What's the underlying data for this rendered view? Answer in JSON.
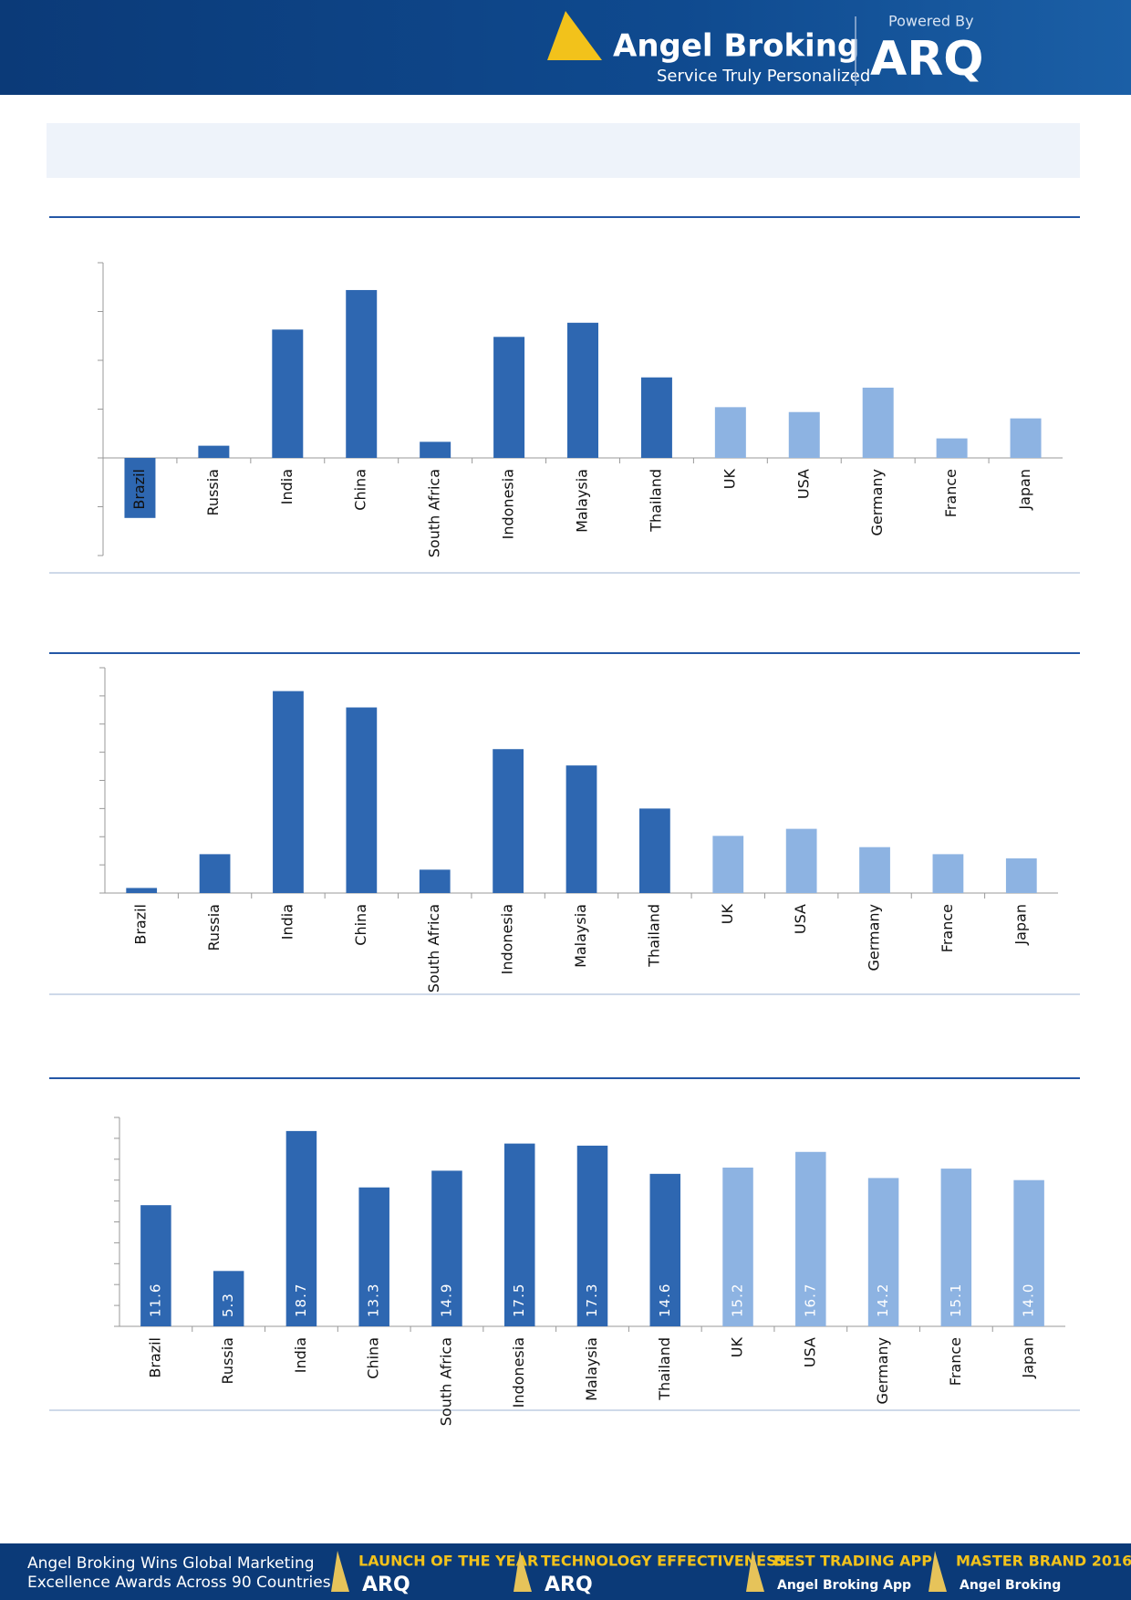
{
  "header": {
    "brand": "Angel Broking",
    "tagline": "Service Truly Personalized",
    "powered": "Powered By",
    "product": "ARQ"
  },
  "chart_data": [
    {
      "type": "bar",
      "categories": [
        "Brazil",
        "Russia",
        "India",
        "China",
        "South Africa",
        "Indonesia",
        "Malaysia",
        "Thailand",
        "UK",
        "USA",
        "Germany",
        "France",
        "Japan"
      ],
      "values": [
        -1.23,
        0.25,
        2.63,
        3.44,
        0.33,
        2.48,
        2.77,
        1.65,
        1.04,
        0.94,
        1.44,
        0.4,
        0.81
      ],
      "colors": [
        "#2e67b1",
        "#2e67b1",
        "#2e67b1",
        "#2e67b1",
        "#2e67b1",
        "#2e67b1",
        "#2e67b1",
        "#2e67b1",
        "#8db3e2",
        "#8db3e2",
        "#8db3e2",
        "#8db3e2",
        "#8db3e2"
      ],
      "ylim": [
        -2,
        4
      ],
      "yticks": [
        -2,
        -1,
        0,
        1,
        2,
        3,
        4
      ]
    },
    {
      "type": "bar",
      "categories": [
        "Brazil",
        "Russia",
        "India",
        "China",
        "South Africa",
        "Indonesia",
        "Malaysia",
        "Thailand",
        "UK",
        "USA",
        "Germany",
        "France",
        "Japan"
      ],
      "values": [
        0.18,
        1.38,
        7.17,
        6.59,
        0.83,
        5.11,
        4.53,
        3.0,
        2.03,
        2.28,
        1.63,
        1.38,
        1.23
      ],
      "colors": [
        "#2e67b1",
        "#2e67b1",
        "#2e67b1",
        "#2e67b1",
        "#2e67b1",
        "#2e67b1",
        "#2e67b1",
        "#2e67b1",
        "#8db3e2",
        "#8db3e2",
        "#8db3e2",
        "#8db3e2",
        "#8db3e2"
      ],
      "ylim": [
        0,
        8
      ],
      "yticks": [
        0,
        1,
        2,
        3,
        4,
        5,
        6,
        7,
        8
      ]
    },
    {
      "type": "bar",
      "categories": [
        "Brazil",
        "Russia",
        "India",
        "China",
        "South Africa",
        "Indonesia",
        "Malaysia",
        "Thailand",
        "UK",
        "USA",
        "Germany",
        "France",
        "Japan"
      ],
      "values": [
        11.6,
        5.3,
        18.7,
        13.3,
        14.9,
        17.5,
        17.3,
        14.6,
        15.2,
        16.7,
        14.2,
        15.1,
        14
      ],
      "value_labels": [
        "11.6",
        "5.3",
        "18.7",
        "13.3",
        "14.9",
        "17.5",
        "17.3",
        "14.6",
        "15.2",
        "16.7",
        "14.2",
        "15.1",
        "14.0"
      ],
      "colors": [
        "#2e67b1",
        "#2e67b1",
        "#2e67b1",
        "#2e67b1",
        "#2e67b1",
        "#2e67b1",
        "#2e67b1",
        "#2e67b1",
        "#8db3e2",
        "#8db3e2",
        "#8db3e2",
        "#8db3e2",
        "#8db3e2"
      ],
      "ylim": [
        0,
        20
      ],
      "yticks": [
        0,
        2,
        4,
        6,
        8,
        10,
        12,
        14,
        16,
        18,
        20
      ]
    }
  ],
  "footer": {
    "headline": [
      "Angel Broking Wins Global Marketing",
      "Excellence Awards Across 90 Countries"
    ],
    "awards": [
      {
        "title": "LAUNCH OF THE YEAR",
        "sub": "ARQ"
      },
      {
        "title": "TECHNOLOGY EFFECTIVENESS",
        "sub": "ARQ"
      },
      {
        "title": "BEST TRADING APP",
        "sub": "Angel Broking App"
      },
      {
        "title": "MASTER BRAND 2016",
        "sub": "Angel Broking"
      }
    ]
  }
}
